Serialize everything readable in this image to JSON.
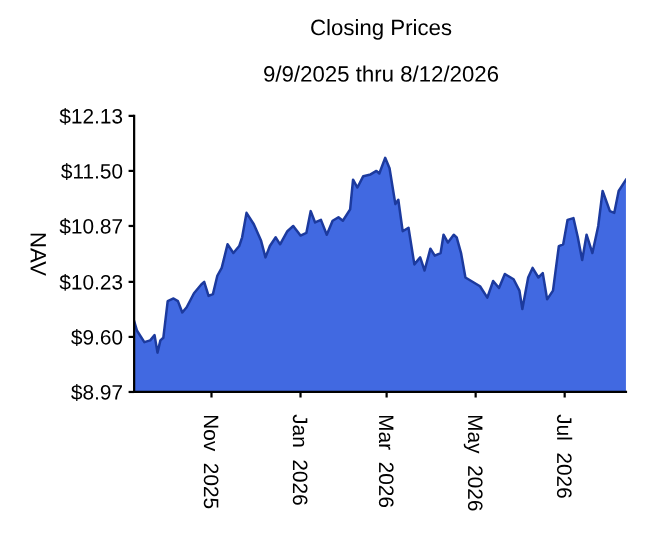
{
  "chart_data": {
    "type": "area",
    "title": "Closing Prices",
    "subtitle": "9/9/2025 thru 8/12/2026",
    "ylabel": "NAV",
    "x": [
      "2025-09-09",
      "2025-09-11",
      "2025-09-16",
      "2025-09-20",
      "2025-09-23",
      "2025-09-25",
      "2025-09-27",
      "2025-09-29",
      "2025-10-02",
      "2025-10-06",
      "2025-10-09",
      "2025-10-12",
      "2025-10-15",
      "2025-10-20",
      "2025-10-25",
      "2025-10-27",
      "2025-10-30",
      "2025-11-02",
      "2025-11-05",
      "2025-11-08",
      "2025-11-12",
      "2025-11-16",
      "2025-11-20",
      "2025-11-22",
      "2025-11-25",
      "2025-11-30",
      "2025-12-05",
      "2025-12-08",
      "2025-12-11",
      "2025-12-15",
      "2025-12-18",
      "2025-12-23",
      "2025-12-27",
      "2026-01-01",
      "2026-01-05",
      "2026-01-08",
      "2026-01-11",
      "2026-01-15",
      "2026-01-19",
      "2026-01-23",
      "2026-01-27",
      "2026-01-30",
      "2026-02-04",
      "2026-02-06",
      "2026-02-09",
      "2026-02-13",
      "2026-02-18",
      "2026-02-22",
      "2026-02-24",
      "2026-02-28",
      "2026-03-03",
      "2026-03-07",
      "2026-03-09",
      "2026-03-12",
      "2026-03-16",
      "2026-03-20",
      "2026-03-24",
      "2026-03-27",
      "2026-03-31",
      "2026-04-03",
      "2026-04-07",
      "2026-04-09",
      "2026-04-12",
      "2026-04-16",
      "2026-04-18",
      "2026-04-21",
      "2026-04-24",
      "2026-04-28",
      "2026-05-04",
      "2026-05-09",
      "2026-05-13",
      "2026-05-17",
      "2026-05-21",
      "2026-05-27",
      "2026-05-31",
      "2026-06-02",
      "2026-06-06",
      "2026-06-09",
      "2026-06-13",
      "2026-06-16",
      "2026-06-19",
      "2026-06-23",
      "2026-06-27",
      "2026-06-30",
      "2026-07-03",
      "2026-07-07",
      "2026-07-10",
      "2026-07-13",
      "2026-07-16",
      "2026-07-20",
      "2026-07-24",
      "2026-07-27",
      "2026-08-01",
      "2026-08-04",
      "2026-08-07",
      "2026-08-12"
    ],
    "series": [
      {
        "color": "#4169e1",
        "values": [
          9.78,
          9.67,
          9.54,
          9.56,
          9.62,
          9.42,
          9.56,
          9.59,
          10.01,
          10.04,
          10.01,
          9.88,
          9.94,
          10.1,
          10.2,
          10.23,
          10.07,
          10.09,
          10.3,
          10.39,
          10.66,
          10.56,
          10.64,
          10.74,
          11.02,
          10.89,
          10.7,
          10.51,
          10.64,
          10.74,
          10.66,
          10.81,
          10.87,
          10.76,
          10.79,
          11.04,
          10.91,
          10.94,
          10.77,
          10.93,
          10.97,
          10.93,
          11.06,
          11.4,
          11.31,
          11.44,
          11.46,
          11.5,
          11.47,
          11.65,
          11.53,
          11.12,
          11.17,
          10.81,
          10.85,
          10.43,
          10.51,
          10.36,
          10.61,
          10.53,
          10.56,
          10.77,
          10.68,
          10.77,
          10.74,
          10.56,
          10.28,
          10.24,
          10.18,
          10.05,
          10.24,
          10.16,
          10.32,
          10.26,
          10.13,
          9.92,
          10.28,
          10.39,
          10.28,
          10.33,
          10.03,
          10.13,
          10.64,
          10.66,
          10.94,
          10.96,
          10.74,
          10.48,
          10.77,
          10.56,
          10.87,
          11.27,
          11.04,
          11.02,
          11.27,
          11.4
        ]
      }
    ],
    "xlim": [
      "2025-09-09",
      "2026-08-12"
    ],
    "xticks": [
      {
        "value": "2025-11-01",
        "label": "Nov  2025"
      },
      {
        "value": "2026-01-01",
        "label": "Jan  2026"
      },
      {
        "value": "2026-03-01",
        "label": "Mar  2026"
      },
      {
        "value": "2026-05-01",
        "label": "May  2026"
      },
      {
        "value": "2026-07-01",
        "label": "Jul  2026"
      }
    ],
    "ylim": [
      8.97,
      12.13
    ],
    "yticks": [
      {
        "value": 8.97,
        "label": "$8.97"
      },
      {
        "value": 9.6,
        "label": "$9.60"
      },
      {
        "value": 10.23,
        "label": "$10.23"
      },
      {
        "value": 10.87,
        "label": "$10.87"
      },
      {
        "value": 11.5,
        "label": "$11.50"
      },
      {
        "value": 12.13,
        "label": "$12.13"
      }
    ],
    "grid": false,
    "legend": false
  }
}
